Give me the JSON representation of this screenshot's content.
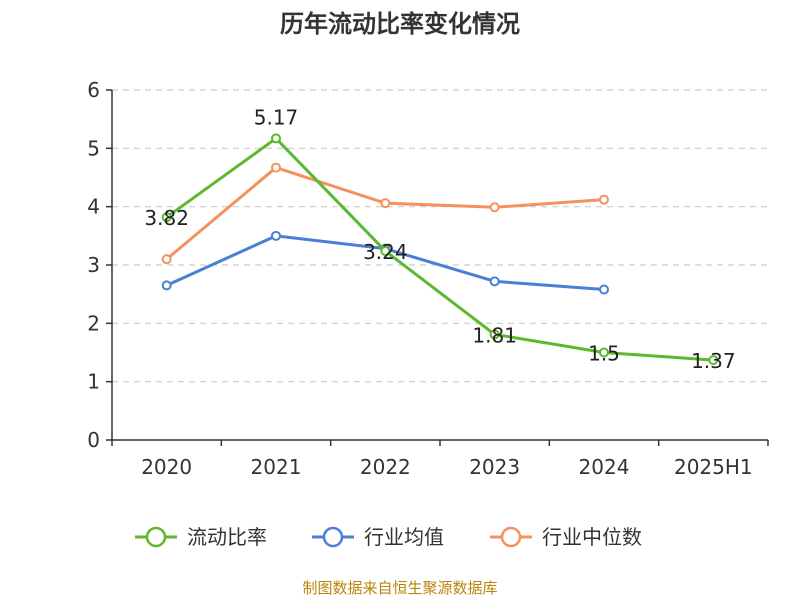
{
  "chart_data": {
    "type": "line",
    "title": "历年流动比率变化情况",
    "categories": [
      "2020",
      "2021",
      "2022",
      "2023",
      "2024",
      "2025H1"
    ],
    "ylim": [
      0,
      6
    ],
    "yticks": [
      0,
      1,
      2,
      3,
      4,
      5,
      6
    ],
    "grid": true,
    "legend_position": "bottom",
    "series": [
      {
        "name": "流动比率",
        "color": "#5cb82e",
        "values": [
          3.82,
          5.17,
          3.24,
          1.81,
          1.5,
          1.37
        ],
        "labels": [
          "3.82",
          "5.17",
          "3.24",
          "1.81",
          "1.5",
          "1.37"
        ]
      },
      {
        "name": "行业均值",
        "color": "#4a7fd6",
        "values": [
          2.65,
          3.5,
          3.28,
          2.72,
          2.58,
          null
        ]
      },
      {
        "name": "行业中位数",
        "color": "#f4915e",
        "values": [
          3.1,
          4.67,
          4.06,
          3.99,
          4.12,
          null
        ]
      }
    ]
  },
  "source": "制图数据来自恒生聚源数据库"
}
